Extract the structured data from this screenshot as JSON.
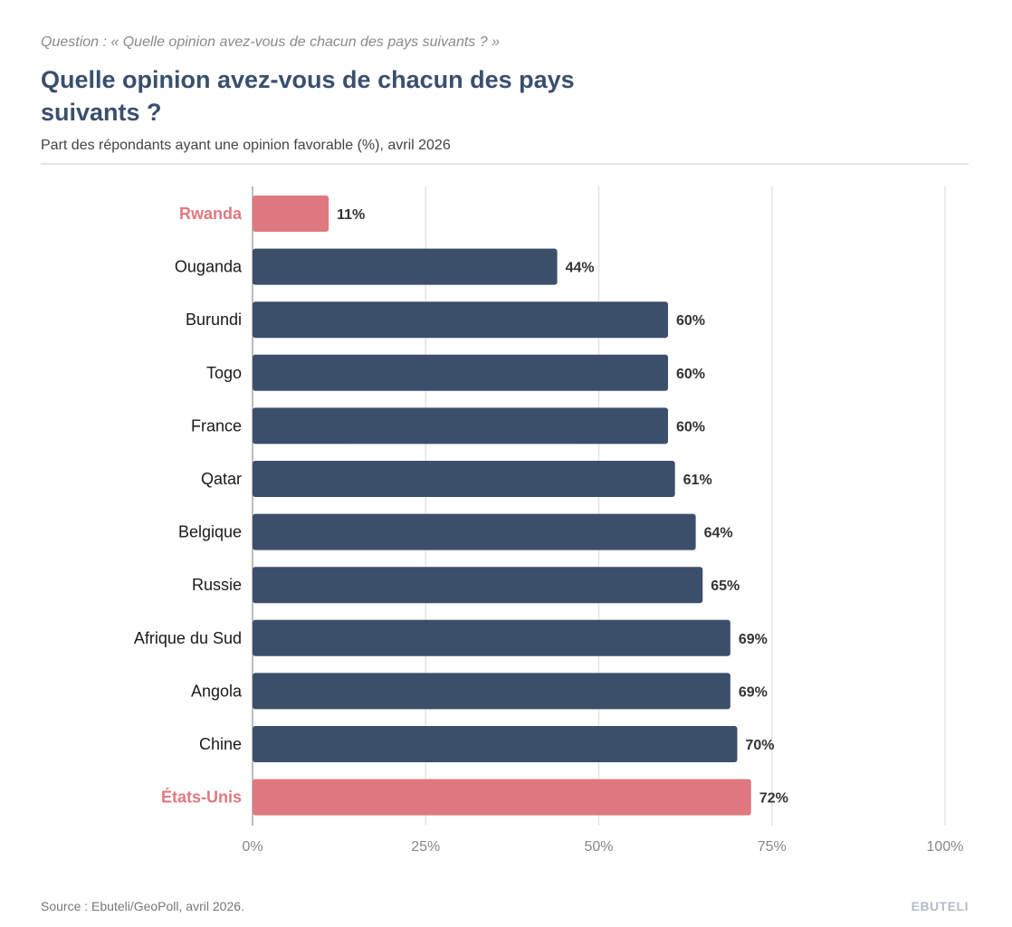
{
  "header": {
    "question": "Question : « Quelle opinion avez-vous de chacun des pays suivants ? »",
    "title": "Quelle opinion avez-vous de chacun des pays suivants ?",
    "subtitle": "Part des répondants ayant une opinion favorable (%), avril 2026"
  },
  "footer": {
    "source": "Source : Ebuteli/GeoPoll, avril 2026.",
    "brand": "EBUTELI"
  },
  "colors": {
    "bar": "#3b4f6b",
    "highlight": "#e07880",
    "label": "#1a1a1a",
    "value": "#333333",
    "grid": "#e3e3e3",
    "tick": "#888888"
  },
  "chart_data": {
    "type": "bar",
    "orientation": "horizontal",
    "title": "Quelle opinion avez-vous de chacun des pays suivants ?",
    "subtitle": "Part des répondants ayant une opinion favorable (%), avril 2026",
    "xlabel": "",
    "ylabel": "",
    "xlim": [
      0,
      100
    ],
    "grid": true,
    "legend": "none",
    "value_suffix": "%",
    "categories": [
      "Rwanda",
      "Ouganda",
      "Burundi",
      "Togo",
      "France",
      "Qatar",
      "Belgique",
      "Russie",
      "Afrique du Sud",
      "Angola",
      "Chine",
      "États-Unis"
    ],
    "values": [
      11,
      44,
      60,
      60,
      60,
      61,
      64,
      65,
      69,
      69,
      70,
      72
    ],
    "highlighted": [
      "Rwanda",
      "États-Unis"
    ],
    "x_ticks": [
      0,
      25,
      50,
      75,
      100
    ],
    "x_tick_labels": [
      "0%",
      "25%",
      "50%",
      "75%",
      "100%"
    ]
  }
}
